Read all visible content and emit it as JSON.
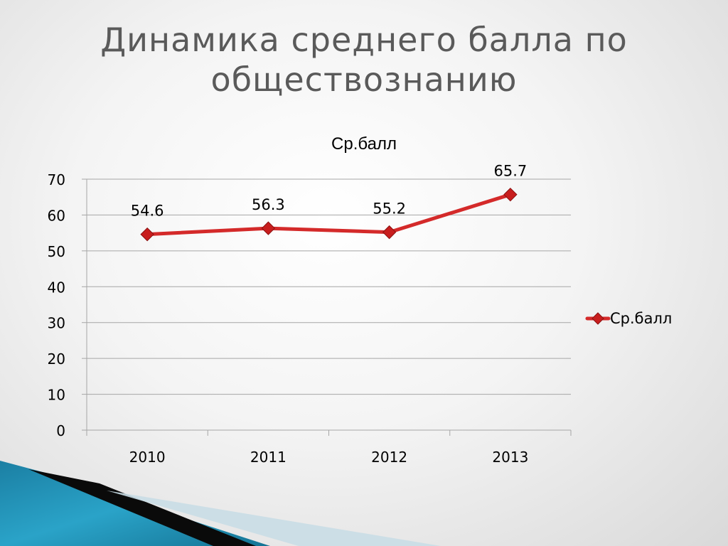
{
  "slide": {
    "title_line1": "Динамика среднего балла по",
    "title_line2": "обществознанию"
  },
  "chart_data": {
    "type": "line",
    "title": "Ср.балл",
    "categories": [
      "2010",
      "2011",
      "2012",
      "2013"
    ],
    "series": [
      {
        "name": "Ср.балл",
        "values": [
          54.6,
          56.3,
          55.2,
          65.7
        ],
        "color": "#d42a2a"
      }
    ],
    "data_labels": [
      "54.6",
      "56.3",
      "55.2",
      "65.7"
    ],
    "ylim": [
      0,
      70
    ],
    "yticks": [
      0,
      10,
      20,
      30,
      40,
      50,
      60,
      70
    ],
    "grid": true,
    "legend_position": "right",
    "xlabel": "",
    "ylabel": ""
  },
  "colors": {
    "title": "#5a5a5a",
    "grid": "#a6a6a6",
    "series": "#d42a2a",
    "decor_teal": "#1e8fb3"
  }
}
